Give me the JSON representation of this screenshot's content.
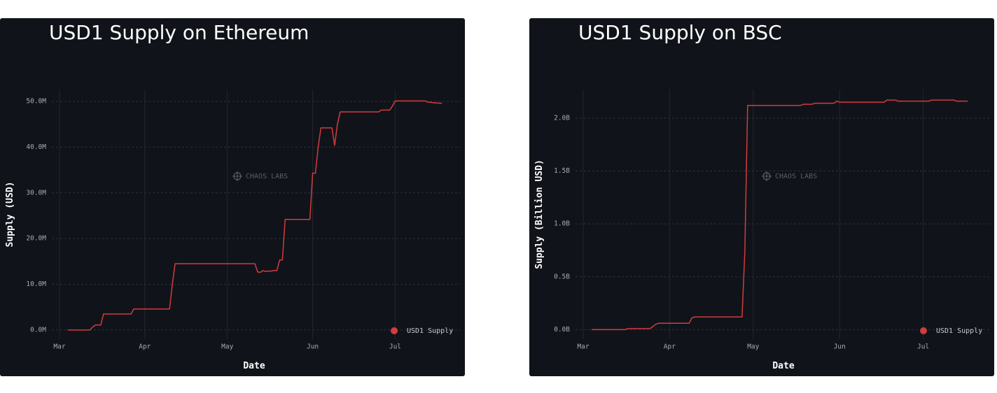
{
  "chart_data": [
    {
      "type": "line",
      "title": "USD1 Supply on Ethereum",
      "x_label": "Date",
      "y_label": "Supply (USD)",
      "watermark": "CHAOS LABS",
      "legend": "lower right",
      "grid": true,
      "categories": [
        "Mar",
        null,
        null,
        null,
        null,
        null,
        null,
        null,
        null,
        null,
        null,
        null,
        null,
        null,
        null,
        null,
        null,
        null,
        null,
        null,
        null,
        null,
        null,
        null,
        null,
        null,
        null,
        null,
        null,
        null,
        null,
        "Apr",
        null,
        null,
        null,
        null,
        null,
        null,
        null,
        null,
        null,
        null,
        null,
        null,
        null,
        null,
        null,
        null,
        null,
        null,
        null,
        null,
        null,
        null,
        null,
        null,
        null,
        null,
        null,
        null,
        null,
        "May",
        null,
        null,
        null,
        null,
        null,
        null,
        null,
        null,
        null,
        null,
        null,
        null,
        null,
        null,
        null,
        null,
        null,
        null,
        null,
        null,
        null,
        null,
        null,
        null,
        null,
        null,
        null,
        null,
        null,
        null,
        "Jun",
        null,
        null,
        null,
        null,
        null,
        null,
        null,
        null,
        null,
        null,
        null,
        null,
        null,
        null,
        null,
        null,
        null,
        null,
        null,
        null,
        null,
        null,
        null,
        null,
        null,
        null,
        null,
        null,
        null,
        "Jul",
        null,
        null,
        null,
        null,
        null,
        null,
        null,
        null,
        null,
        null,
        null,
        null,
        null,
        null,
        null,
        null,
        null
      ],
      "ylim": [
        -2.0,
        52.6
      ],
      "yticks": [
        {
          "value": 0,
          "label": "0.0M"
        },
        {
          "value": 10,
          "label": "10.0M"
        },
        {
          "value": 20,
          "label": "20.0M"
        },
        {
          "value": 30,
          "label": "30.0M"
        },
        {
          "value": 40,
          "label": "40.0M"
        },
        {
          "value": 50,
          "label": "50.0M"
        }
      ],
      "series": [
        {
          "name": "USD1 Supply",
          "color": "#d23c3c",
          "values": [
            null,
            null,
            null,
            0,
            0,
            0,
            0,
            0,
            0,
            0,
            0,
            0,
            0.6,
            1.1,
            1.1,
            1.1,
            3.5,
            3.5,
            3.5,
            3.5,
            3.5,
            3.5,
            3.5,
            3.5,
            3.5,
            3.5,
            3.5,
            4.6,
            4.6,
            4.6,
            4.6,
            4.6,
            4.6,
            4.6,
            4.6,
            4.6,
            4.6,
            4.6,
            4.6,
            4.6,
            4.6,
            10.0,
            14.5,
            14.5,
            14.5,
            14.5,
            14.5,
            14.5,
            14.5,
            14.5,
            14.5,
            14.5,
            14.5,
            14.5,
            14.5,
            14.5,
            14.5,
            14.5,
            14.5,
            14.5,
            14.5,
            14.5,
            14.5,
            14.5,
            14.5,
            14.5,
            14.5,
            14.5,
            14.5,
            14.5,
            14.5,
            14.5,
            12.7,
            12.6,
            13.0,
            12.8,
            12.9,
            12.9,
            13.0,
            13.0,
            15.3,
            15.3,
            24.2,
            24.2,
            24.2,
            24.2,
            24.2,
            24.2,
            24.2,
            24.2,
            24.2,
            24.2,
            34.3,
            34.3,
            40.0,
            44.2,
            44.2,
            44.2,
            44.2,
            44.2,
            40.4,
            45.0,
            47.7,
            47.7,
            47.7,
            47.7,
            47.7,
            47.7,
            47.7,
            47.7,
            47.7,
            47.7,
            47.7,
            47.7,
            47.7,
            47.7,
            47.7,
            48.1,
            48.1,
            48.1,
            48.1,
            49.0,
            50.1,
            50.1,
            50.1,
            50.1,
            50.1,
            50.1,
            50.1,
            50.1,
            50.1,
            50.1,
            50.1,
            50.1,
            49.8,
            49.8,
            49.7,
            49.7,
            49.6,
            49.6
          ]
        }
      ]
    },
    {
      "type": "line",
      "title": "USD1 Supply on BSC",
      "x_label": "Date",
      "y_label": "Supply (Billion USD)",
      "watermark": "CHAOS LABS",
      "legend": "lower right",
      "grid": true,
      "categories": [
        "Mar",
        null,
        null,
        null,
        null,
        null,
        null,
        null,
        null,
        null,
        null,
        null,
        null,
        null,
        null,
        null,
        null,
        null,
        null,
        null,
        null,
        null,
        null,
        null,
        null,
        null,
        null,
        null,
        null,
        null,
        null,
        "Apr",
        null,
        null,
        null,
        null,
        null,
        null,
        null,
        null,
        null,
        null,
        null,
        null,
        null,
        null,
        null,
        null,
        null,
        null,
        null,
        null,
        null,
        null,
        null,
        null,
        null,
        null,
        null,
        null,
        null,
        "May",
        null,
        null,
        null,
        null,
        null,
        null,
        null,
        null,
        null,
        null,
        null,
        null,
        null,
        null,
        null,
        null,
        null,
        null,
        null,
        null,
        null,
        null,
        null,
        null,
        null,
        null,
        null,
        null,
        null,
        null,
        "Jun",
        null,
        null,
        null,
        null,
        null,
        null,
        null,
        null,
        null,
        null,
        null,
        null,
        null,
        null,
        null,
        null,
        null,
        null,
        null,
        null,
        null,
        null,
        null,
        null,
        null,
        null,
        null,
        null,
        null,
        "Jul",
        null,
        null,
        null,
        null,
        null,
        null,
        null,
        null,
        null,
        null,
        null,
        null,
        null,
        null,
        null,
        null
      ],
      "ylim": [
        -0.09,
        2.27
      ],
      "yticks": [
        {
          "value": 0,
          "label": "0.0B"
        },
        {
          "value": 0.5,
          "label": "0.5B"
        },
        {
          "value": 1,
          "label": "1.0B"
        },
        {
          "value": 1.5,
          "label": "1.5B"
        },
        {
          "value": 2,
          "label": "2.0B"
        }
      ],
      "series": [
        {
          "name": "USD1 Supply",
          "color": "#d23c3c",
          "values": [
            null,
            null,
            null,
            0,
            0,
            0,
            0,
            0,
            0,
            0,
            0,
            0,
            0,
            0,
            0,
            0,
            0.01,
            0.01,
            0.01,
            0.01,
            0.01,
            0.01,
            0.01,
            0.01,
            0.01,
            0.03,
            0.05,
            0.06,
            0.06,
            0.06,
            0.06,
            0.06,
            0.06,
            0.06,
            0.06,
            0.06,
            0.06,
            0.06,
            0.06,
            0.11,
            0.12,
            0.12,
            0.12,
            0.12,
            0.12,
            0.12,
            0.12,
            0.12,
            0.12,
            0.12,
            0.12,
            0.12,
            0.12,
            0.12,
            0.12,
            0.12,
            0.12,
            0.12,
            0.74,
            2.12,
            2.12,
            2.12,
            2.12,
            2.12,
            2.12,
            2.12,
            2.12,
            2.12,
            2.12,
            2.12,
            2.12,
            2.12,
            2.12,
            2.12,
            2.12,
            2.12,
            2.12,
            2.12,
            2.12,
            2.13,
            2.13,
            2.13,
            2.13,
            2.14,
            2.14,
            2.14,
            2.14,
            2.14,
            2.14,
            2.14,
            2.14,
            2.16,
            2.15,
            2.15,
            2.15,
            2.15,
            2.15,
            2.15,
            2.15,
            2.15,
            2.15,
            2.15,
            2.15,
            2.15,
            2.15,
            2.15,
            2.15,
            2.15,
            2.15,
            2.17,
            2.17,
            2.17,
            2.17,
            2.16,
            2.16,
            2.16,
            2.16,
            2.16,
            2.16,
            2.16,
            2.16,
            2.16,
            2.16,
            2.16,
            2.16,
            2.17,
            2.17,
            2.17,
            2.17,
            2.17,
            2.17,
            2.17,
            2.17,
            2.17,
            2.16,
            2.16,
            2.16,
            2.16,
            2.16
          ]
        }
      ]
    }
  ]
}
